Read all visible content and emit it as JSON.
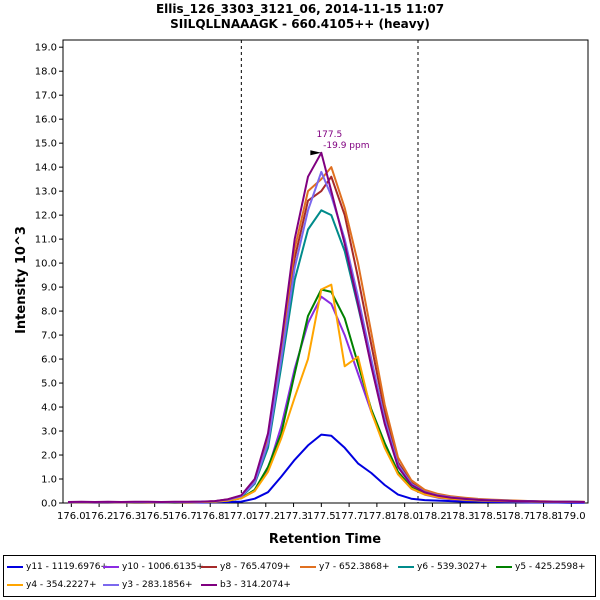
{
  "chart_data": {
    "type": "line",
    "title": "Ellis_126_3303_3121_06, 2014-11-15 11:07",
    "subtitle": "SIILQLLNAAAGK - 660.4105++ (heavy)",
    "xlabel": "Retention Time",
    "ylabel": "Intensity 10^3",
    "xlim": [
      175.95,
      179.1
    ],
    "ylim": [
      0,
      19.3
    ],
    "x_ticks": [
      "176.0",
      "176.2",
      "176.3",
      "176.5",
      "176.7",
      "176.8",
      "177.0",
      "177.2",
      "177.3",
      "177.5",
      "177.7",
      "177.8",
      "178.0",
      "178.2",
      "178.3",
      "178.5",
      "178.7",
      "178.8",
      "179.0"
    ],
    "x_tick_values": [
      176.0,
      176.1667,
      176.3333,
      176.5,
      176.6667,
      176.8333,
      177.0,
      177.1667,
      177.3333,
      177.5,
      177.6667,
      177.8333,
      178.0,
      178.1667,
      178.3333,
      178.5,
      178.6667,
      178.8333,
      179.0
    ],
    "y_ticks": [
      0.0,
      1.0,
      2.0,
      3.0,
      4.0,
      5.0,
      6.0,
      7.0,
      8.0,
      9.0,
      10.0,
      11.0,
      12.0,
      13.0,
      14.0,
      15.0,
      16.0,
      17.0,
      18.0,
      19.0
    ],
    "y_tick_labels": [
      "0.0",
      "1.0",
      "2.0",
      "3.0",
      "4.0",
      "5.0",
      "6.0",
      "7.0",
      "8.0",
      "9.0",
      "10.0",
      "11.0",
      "12.0",
      "13.0",
      "14.0",
      "15.0",
      "16.0",
      "17.0",
      "18.0",
      "19.0"
    ],
    "integration_bounds": [
      177.02,
      178.08
    ],
    "peak_annotation": {
      "x": 177.5,
      "y": 14.6,
      "label_rt": "177.5",
      "label_ppm": "-19.9 ppm",
      "color": "#800080"
    },
    "x": [
      175.98,
      176.06,
      176.14,
      176.22,
      176.3,
      176.38,
      176.46,
      176.54,
      176.62,
      176.7,
      176.78,
      176.86,
      176.94,
      177.02,
      177.1,
      177.18,
      177.26,
      177.34,
      177.42,
      177.5,
      177.56,
      177.64,
      177.72,
      177.8,
      177.88,
      177.96,
      178.04,
      178.12,
      178.2,
      178.28,
      178.36,
      178.44,
      178.52,
      178.6,
      178.68,
      178.76,
      178.84,
      178.92,
      179.0,
      179.08
    ],
    "series": [
      {
        "name": "y11 - 1119.6976+",
        "color": "#0000e0",
        "values": [
          0.01,
          0.02,
          0.01,
          0.01,
          0.02,
          0.01,
          0.01,
          0.02,
          0.01,
          0.01,
          0.02,
          0.03,
          0.04,
          0.06,
          0.18,
          0.45,
          1.1,
          1.8,
          2.4,
          2.85,
          2.8,
          2.3,
          1.65,
          1.25,
          0.75,
          0.35,
          0.18,
          0.12,
          0.1,
          0.08,
          0.06,
          0.05,
          0.04,
          0.03,
          0.03,
          0.02,
          0.02,
          0.02,
          0.01,
          0.01
        ]
      },
      {
        "name": "y10 - 1006.6135+",
        "color": "#8a2be2",
        "values": [
          0.02,
          0.03,
          0.02,
          0.03,
          0.02,
          0.03,
          0.03,
          0.02,
          0.03,
          0.03,
          0.04,
          0.05,
          0.1,
          0.2,
          0.5,
          1.4,
          3.2,
          5.6,
          7.5,
          8.6,
          8.3,
          7.0,
          5.4,
          3.8,
          2.4,
          1.2,
          0.6,
          0.35,
          0.22,
          0.16,
          0.12,
          0.1,
          0.08,
          0.07,
          0.06,
          0.05,
          0.05,
          0.04,
          0.04,
          0.03
        ]
      },
      {
        "name": "y8 - 765.4709+",
        "color": "#a52a2a",
        "values": [
          0.03,
          0.04,
          0.03,
          0.04,
          0.03,
          0.04,
          0.04,
          0.03,
          0.04,
          0.04,
          0.05,
          0.07,
          0.15,
          0.3,
          0.9,
          2.6,
          6.2,
          10.2,
          12.6,
          13.0,
          13.6,
          12.0,
          9.4,
          6.6,
          3.8,
          1.7,
          0.85,
          0.5,
          0.35,
          0.25,
          0.2,
          0.15,
          0.12,
          0.1,
          0.08,
          0.07,
          0.06,
          0.05,
          0.05,
          0.04
        ]
      },
      {
        "name": "y7 - 652.3868+",
        "color": "#e07020",
        "values": [
          0.03,
          0.04,
          0.03,
          0.04,
          0.04,
          0.03,
          0.04,
          0.04,
          0.03,
          0.04,
          0.05,
          0.07,
          0.15,
          0.3,
          0.9,
          2.7,
          6.4,
          10.6,
          13.0,
          13.5,
          14.0,
          12.3,
          10.0,
          7.1,
          4.1,
          1.9,
          0.95,
          0.55,
          0.38,
          0.28,
          0.22,
          0.17,
          0.14,
          0.12,
          0.1,
          0.08,
          0.07,
          0.06,
          0.05,
          0.05
        ]
      },
      {
        "name": "y6 - 539.3027+",
        "color": "#008b8b",
        "values": [
          0.03,
          0.03,
          0.03,
          0.04,
          0.03,
          0.03,
          0.04,
          0.03,
          0.03,
          0.04,
          0.05,
          0.06,
          0.13,
          0.25,
          0.8,
          2.3,
          5.7,
          9.3,
          11.4,
          12.2,
          12.0,
          10.5,
          8.2,
          5.8,
          3.4,
          1.6,
          0.8,
          0.45,
          0.3,
          0.22,
          0.17,
          0.13,
          0.11,
          0.09,
          0.08,
          0.07,
          0.06,
          0.05,
          0.05,
          0.04
        ]
      },
      {
        "name": "y5 - 425.2598+",
        "color": "#008000",
        "values": [
          0.02,
          0.03,
          0.02,
          0.03,
          0.03,
          0.02,
          0.03,
          0.03,
          0.02,
          0.03,
          0.04,
          0.05,
          0.1,
          0.2,
          0.55,
          1.5,
          2.9,
          5.4,
          7.8,
          8.9,
          8.8,
          7.7,
          5.8,
          3.9,
          2.5,
          1.3,
          0.65,
          0.38,
          0.25,
          0.18,
          0.14,
          0.11,
          0.09,
          0.08,
          0.07,
          0.06,
          0.05,
          0.05,
          0.04,
          0.04
        ]
      },
      {
        "name": "y4 - 354.2227+",
        "color": "#ffa500",
        "values": [
          0.02,
          0.03,
          0.02,
          0.03,
          0.02,
          0.03,
          0.02,
          0.03,
          0.03,
          0.02,
          0.04,
          0.05,
          0.1,
          0.2,
          0.5,
          1.3,
          2.7,
          4.4,
          6.0,
          8.9,
          9.1,
          5.7,
          6.1,
          3.8,
          2.3,
          1.2,
          0.6,
          0.36,
          0.24,
          0.18,
          0.14,
          0.11,
          0.09,
          0.08,
          0.07,
          0.06,
          0.05,
          0.05,
          0.04,
          0.04
        ]
      },
      {
        "name": "y3 - 283.1856+",
        "color": "#7b68ee",
        "values": [
          0.03,
          0.04,
          0.03,
          0.04,
          0.03,
          0.04,
          0.04,
          0.03,
          0.04,
          0.04,
          0.05,
          0.07,
          0.14,
          0.28,
          0.85,
          2.5,
          6.0,
          9.8,
          12.2,
          13.8,
          12.8,
          11.0,
          8.6,
          6.0,
          3.5,
          1.6,
          0.8,
          0.46,
          0.32,
          0.24,
          0.18,
          0.14,
          0.12,
          0.1,
          0.08,
          0.07,
          0.06,
          0.05,
          0.05,
          0.04
        ]
      },
      {
        "name": "b3 - 314.2074+",
        "color": "#800080",
        "values": [
          0.04,
          0.05,
          0.04,
          0.05,
          0.04,
          0.05,
          0.05,
          0.04,
          0.05,
          0.05,
          0.06,
          0.08,
          0.16,
          0.32,
          1.0,
          2.9,
          6.7,
          11.0,
          13.6,
          14.6,
          13.0,
          10.8,
          8.3,
          5.7,
          3.3,
          1.5,
          0.75,
          0.44,
          0.3,
          0.22,
          0.17,
          0.13,
          0.11,
          0.09,
          0.08,
          0.07,
          0.06,
          0.05,
          0.05,
          0.04
        ]
      }
    ]
  }
}
